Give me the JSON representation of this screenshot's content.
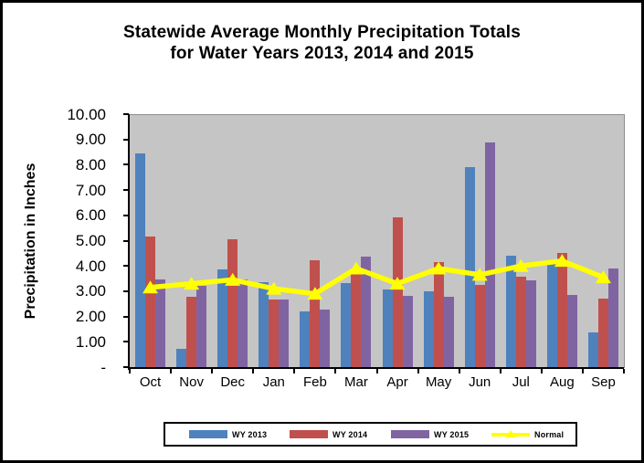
{
  "title": {
    "line1": "Statewide Average Monthly Precipitation Totals",
    "line2": "for Water Years 2013, 2014 and 2015"
  },
  "y_axis": {
    "title": "Precipitation in Inches",
    "tick_labels": [
      "10.00",
      "9.00",
      "8.00",
      "7.00",
      "6.00",
      "5.00",
      "4.00",
      "3.00",
      "2.00",
      "1.00",
      "-"
    ]
  },
  "colors": {
    "bar_blue": "#4F81BD",
    "bar_red": "#C0504D",
    "bar_purple": "#8064A2",
    "line_yellow": "#FFFF00",
    "plot_background": "#C5C5C5",
    "plot_border": "#8E8E8E",
    "axis": "#000000",
    "canvas_border": "#000000"
  },
  "chart_data": {
    "type": "bar",
    "subtype": "grouped-bars-with-line-overlay",
    "title": "Statewide Average Monthly Precipitation Totals for Water Years 2013, 2014 and 2015",
    "categories": [
      "Oct",
      "Nov",
      "Dec",
      "Jan",
      "Feb",
      "Mar",
      "Apr",
      "May",
      "Jun",
      "Jul",
      "Aug",
      "Sep"
    ],
    "series": [
      {
        "name": "WY 2013",
        "type": "bar",
        "color": "#4F81BD",
        "values": [
          8.5,
          0.75,
          3.9,
          3.4,
          2.25,
          3.35,
          3.1,
          3.05,
          7.95,
          4.45,
          4.2,
          1.4
        ]
      },
      {
        "name": "WY 2014",
        "type": "bar",
        "color": "#C0504D",
        "values": [
          5.2,
          2.8,
          5.1,
          2.7,
          4.25,
          3.75,
          5.95,
          4.2,
          3.3,
          3.6,
          4.55,
          2.75
        ]
      },
      {
        "name": "WY 2015",
        "type": "bar",
        "color": "#8064A2",
        "values": [
          3.5,
          3.25,
          3.5,
          2.7,
          2.3,
          4.4,
          2.85,
          2.8,
          8.9,
          3.45,
          2.9,
          3.95
        ]
      },
      {
        "name": "Normal",
        "type": "line",
        "color": "#FFFF00",
        "values": [
          3.15,
          3.3,
          3.45,
          3.1,
          2.9,
          3.9,
          3.3,
          3.9,
          3.65,
          4.0,
          4.2,
          3.55
        ]
      }
    ],
    "xlabel": "",
    "ylabel": "Precipitation in Inches",
    "ylim": [
      0,
      10
    ],
    "ytick_step": 1,
    "grid": false,
    "legend_position": "bottom",
    "plot_background": "#C5C5C5"
  }
}
